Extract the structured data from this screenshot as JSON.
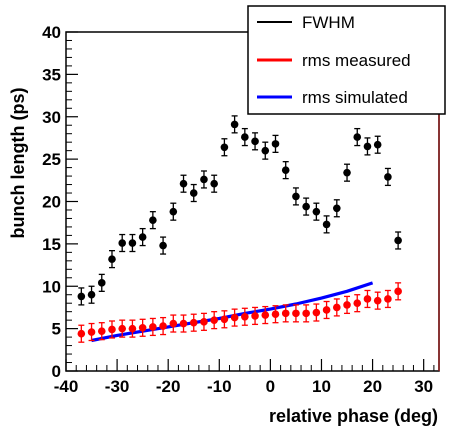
{
  "chart_data": {
    "type": "scatter",
    "xlabel": "relative phase (deg)",
    "ylabel": "bunch length (ps)",
    "xlim": [
      -40,
      33
    ],
    "ylim": [
      0,
      40
    ],
    "xticks": [
      "-40",
      "-30",
      "-20",
      "-10",
      "0",
      "10",
      "20",
      "30"
    ],
    "yticks": [
      "0",
      "5",
      "10",
      "15",
      "20",
      "25",
      "30",
      "35",
      "40"
    ],
    "xtick_values": [
      -40,
      -30,
      -20,
      -10,
      0,
      10,
      20,
      30
    ],
    "ytick_values": [
      0,
      5,
      10,
      15,
      20,
      25,
      30,
      35,
      40
    ],
    "legend_position": "top-right",
    "series": [
      {
        "name": "FWHM",
        "kind": "points",
        "color": "#000000",
        "x": [
          -37,
          -35,
          -33,
          -31,
          -29,
          -27,
          -25,
          -23,
          -21,
          -19,
          -17,
          -15,
          -13,
          -11,
          -9,
          -7,
          -5,
          -3,
          -1,
          1,
          3,
          5,
          7,
          9,
          11,
          13,
          15,
          17,
          19,
          21,
          23,
          25
        ],
        "y": [
          8.8,
          9.0,
          10.4,
          13.2,
          15.1,
          15.1,
          15.8,
          17.8,
          14.8,
          18.8,
          22.1,
          21.0,
          22.6,
          22.1,
          26.4,
          29.1,
          27.6,
          27.1,
          26.0,
          26.8,
          23.7,
          20.6,
          19.4,
          18.8,
          17.3,
          19.2,
          23.4,
          27.6,
          26.5,
          26.7,
          22.9,
          15.4
        ],
        "err": [
          1.0,
          1.0,
          1.0,
          1.0,
          1.0,
          1.0,
          1.0,
          1.0,
          1.0,
          1.0,
          1.0,
          1.0,
          1.0,
          1.0,
          1.0,
          1.0,
          1.0,
          1.0,
          1.0,
          1.0,
          1.0,
          1.0,
          1.0,
          1.0,
          1.0,
          1.0,
          1.0,
          1.0,
          1.0,
          1.0,
          1.0,
          1.0
        ]
      },
      {
        "name": "rms measured",
        "kind": "points",
        "color": "#ff0000",
        "x": [
          -37,
          -35,
          -33,
          -31,
          -29,
          -27,
          -25,
          -23,
          -21,
          -19,
          -17,
          -15,
          -13,
          -11,
          -9,
          -7,
          -5,
          -3,
          -1,
          1,
          3,
          5,
          7,
          9,
          11,
          13,
          15,
          17,
          19,
          21,
          23,
          25
        ],
        "y": [
          4.4,
          4.6,
          4.7,
          4.9,
          5.0,
          5.0,
          5.1,
          5.2,
          5.3,
          5.6,
          5.6,
          5.7,
          5.8,
          6.0,
          6.1,
          6.3,
          6.4,
          6.5,
          6.6,
          6.7,
          6.8,
          6.8,
          6.8,
          6.9,
          7.2,
          7.5,
          7.8,
          8.0,
          8.5,
          8.3,
          8.5,
          9.4
        ],
        "err": [
          1.0,
          1.0,
          1.0,
          1.0,
          1.0,
          1.0,
          1.0,
          1.0,
          1.0,
          1.0,
          1.0,
          1.0,
          1.0,
          1.0,
          1.0,
          1.0,
          1.0,
          1.0,
          1.0,
          1.0,
          1.0,
          1.0,
          1.0,
          1.0,
          1.0,
          1.0,
          1.0,
          1.0,
          1.0,
          1.0,
          1.0,
          1.0
        ]
      },
      {
        "name": "rms simulated",
        "kind": "line",
        "color": "#0000ff",
        "x": [
          -35,
          -30,
          -25,
          -20,
          -15,
          -10,
          -5,
          0,
          5,
          10,
          15,
          20
        ],
        "y": [
          3.6,
          4.2,
          4.7,
          5.2,
          5.7,
          6.2,
          6.8,
          7.3,
          7.9,
          8.6,
          9.4,
          10.4
        ]
      }
    ]
  }
}
